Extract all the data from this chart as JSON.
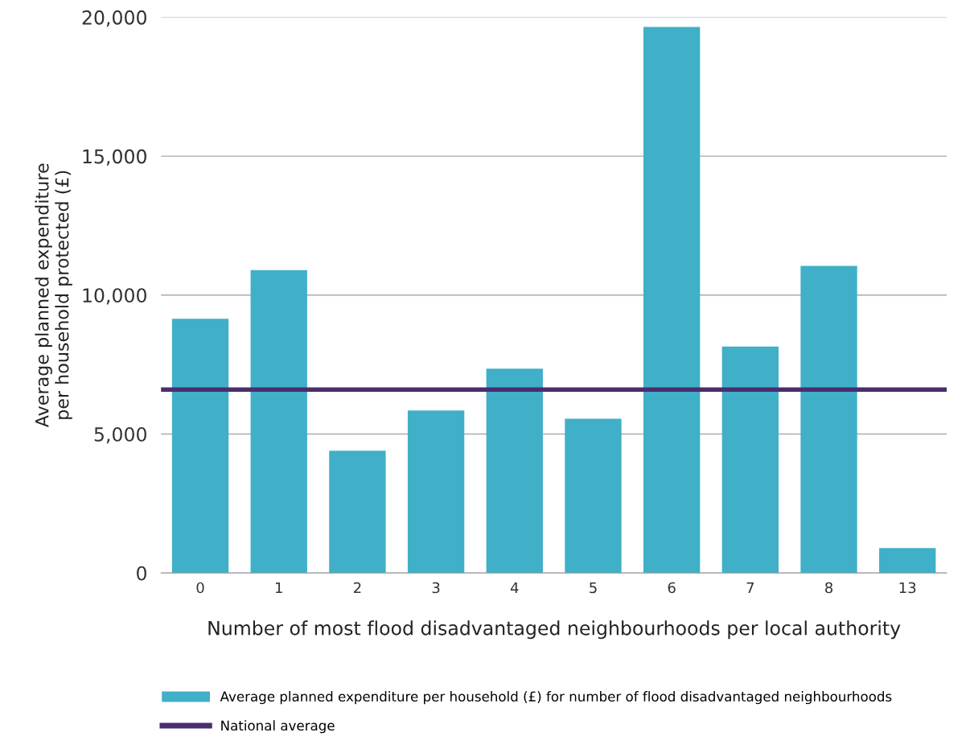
{
  "chart_data": {
    "type": "bar",
    "categories": [
      "0",
      "1",
      "2",
      "3",
      "4",
      "5",
      "6",
      "7",
      "8",
      "13"
    ],
    "series": [
      {
        "name": "Average planned expenditure per household (£) for number of flood disadvantaged neighbourhoods",
        "color": "#40afc8",
        "values": [
          9150,
          10900,
          4400,
          5850,
          7350,
          5550,
          19650,
          8150,
          11050,
          900
        ]
      }
    ],
    "xlabel": "Number of most flood disadvantaged neighbourhoods per local authority",
    "ylabel": "Average planned expenditure\nper household protected (£)",
    "ylim": [
      0,
      20000
    ],
    "yticks": [
      {
        "value": 0,
        "label": "0"
      },
      {
        "value": 5000,
        "label": "5,000"
      },
      {
        "value": 10000,
        "label": "10,000"
      },
      {
        "value": 15000,
        "label": "15,000"
      },
      {
        "value": 20000,
        "label": "20,000"
      }
    ],
    "ref_lines": [
      {
        "axis": "y",
        "value": 6600,
        "label": "National average",
        "color": "#4a2d6e",
        "line_style": "solid"
      }
    ],
    "grid": "y",
    "legend": "bottom"
  }
}
